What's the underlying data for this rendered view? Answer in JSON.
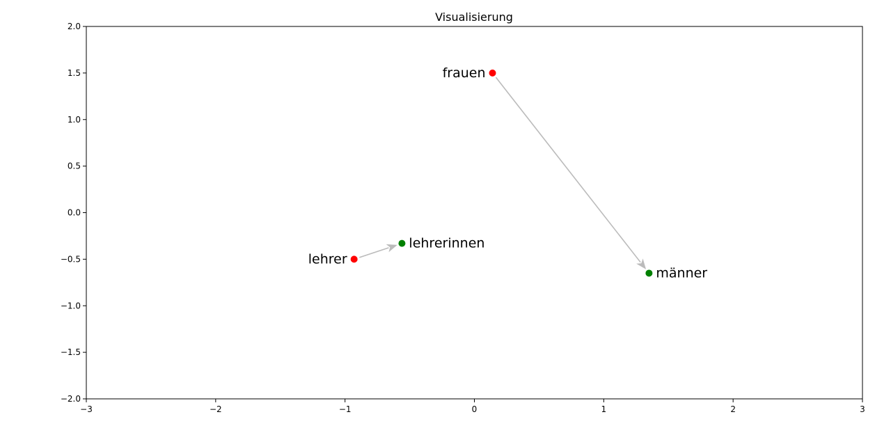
{
  "chart_data": {
    "type": "scatter",
    "title": "Visualisierung",
    "xlabel": "",
    "ylabel": "",
    "xlim": [
      -3,
      3
    ],
    "ylim": [
      -2,
      2
    ],
    "xticks": [
      -3,
      -2,
      -1,
      0,
      1,
      2,
      3
    ],
    "yticks": [
      -2.0,
      -1.5,
      -1.0,
      -0.5,
      0.0,
      0.5,
      1.0,
      1.5,
      2.0
    ],
    "xtick_labels": [
      "−3",
      "−2",
      "−1",
      "0",
      "1",
      "2",
      "3"
    ],
    "ytick_labels": [
      "−2.0",
      "−1.5",
      "−1.0",
      "−0.5",
      "0.0",
      "0.5",
      "1.0",
      "1.5",
      "2.0"
    ],
    "grid": false,
    "points": [
      {
        "label": "lehrer",
        "x": -0.93,
        "y": -0.5,
        "color": "#ff0000",
        "label_side": "left"
      },
      {
        "label": "lehrerinnen",
        "x": -0.56,
        "y": -0.33,
        "color": "#008000",
        "label_side": "right"
      },
      {
        "label": "frauen",
        "x": 0.14,
        "y": 1.5,
        "color": "#ff0000",
        "label_side": "left"
      },
      {
        "label": "männer",
        "x": 1.35,
        "y": -0.65,
        "color": "#008000",
        "label_side": "right"
      }
    ],
    "arrows": [
      {
        "from": {
          "x": -0.93,
          "y": -0.5
        },
        "to": {
          "x": -0.56,
          "y": -0.33
        },
        "color": "#bbbbbb"
      },
      {
        "from": {
          "x": 0.14,
          "y": 1.5
        },
        "to": {
          "x": 1.35,
          "y": -0.65
        },
        "color": "#bbbbbb"
      }
    ]
  }
}
